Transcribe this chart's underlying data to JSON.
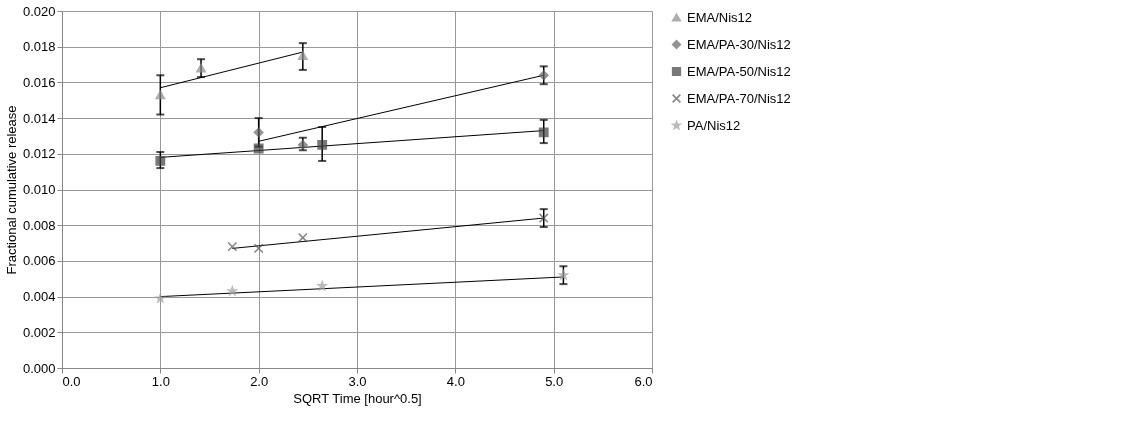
{
  "chart_data": {
    "type": "scatter",
    "xlabel": "SQRT Time [hour^0.5]",
    "ylabel": "Fractional cumulative release",
    "xlim": [
      0,
      6
    ],
    "ylim": [
      0,
      0.02
    ],
    "xticks": [
      {
        "value": 0,
        "label": "0.0"
      },
      {
        "value": 1,
        "label": "1.0"
      },
      {
        "value": 2,
        "label": "2.0"
      },
      {
        "value": 3,
        "label": "3.0"
      },
      {
        "value": 4,
        "label": "4.0"
      },
      {
        "value": 5,
        "label": "5.0"
      },
      {
        "value": 6,
        "label": "6.0"
      }
    ],
    "yticks": [
      {
        "value": 0,
        "label": "0.000"
      },
      {
        "value": 0.002,
        "label": "0.002"
      },
      {
        "value": 0.004,
        "label": "0.004"
      },
      {
        "value": 0.006,
        "label": "0.006"
      },
      {
        "value": 0.008,
        "label": "0.008"
      },
      {
        "value": 0.01,
        "label": "0.010"
      },
      {
        "value": 0.012,
        "label": "0.012"
      },
      {
        "value": 0.014,
        "label": "0.014"
      },
      {
        "value": 0.016,
        "label": "0.016"
      },
      {
        "value": 0.018,
        "label": "0.018"
      },
      {
        "value": 0.02,
        "label": "0.020"
      }
    ],
    "grid": true,
    "legend": "right",
    "series": [
      {
        "name": "EMA/Nis12",
        "color": "#8c8c8c",
        "marker": "triangle",
        "x": [
          1.0,
          1.414,
          2.449
        ],
        "values": [
          0.0153,
          0.0168,
          0.0175
        ],
        "errors": [
          [
            0.0142,
            0.0164
          ],
          [
            0.0163,
            0.0173
          ],
          [
            0.0167,
            0.0182
          ]
        ]
      },
      {
        "name": "EMA/PA-30/Nis12",
        "color": "#666666",
        "marker": "diamond",
        "x": [
          2.0,
          2.449,
          4.899
        ],
        "values": [
          0.0132,
          0.0125,
          0.0164
        ],
        "errors": [
          [
            0.0124,
            0.014
          ],
          [
            0.0122,
            0.0129
          ],
          [
            0.0159,
            0.0169
          ]
        ]
      },
      {
        "name": "EMA/PA-50/Nis12",
        "color": "#404040",
        "marker": "square",
        "x": [
          1.0,
          2.0,
          2.646,
          4.899
        ],
        "values": [
          0.0116,
          0.0123,
          0.0125,
          0.0132
        ],
        "errors": [
          [
            0.0112,
            0.0121
          ],
          null,
          [
            0.0116,
            0.0135
          ],
          [
            0.0126,
            0.0139
          ]
        ]
      },
      {
        "name": "EMA/PA-70/Nis12",
        "color": "#505050",
        "marker": "cross",
        "x": [
          1.732,
          2.0,
          2.449,
          4.899
        ],
        "values": [
          0.0068,
          0.0067,
          0.0073,
          0.0084
        ],
        "errors": [
          null,
          null,
          null,
          [
            0.0079,
            0.0089
          ]
        ]
      },
      {
        "name": "PA/Nis12",
        "color": "#a0a0a0",
        "marker": "star",
        "x": [
          1.0,
          1.732,
          2.646,
          5.099
        ],
        "values": [
          0.0039,
          0.0043,
          0.0046,
          0.0052
        ],
        "errors": [
          null,
          null,
          null,
          [
            0.0047,
            0.0057
          ]
        ]
      },
      {
        "type": "line",
        "color": "#000000",
        "x": [
          1.0,
          2.449
        ],
        "values": [
          0.0157,
          0.0177
        ]
      },
      {
        "type": "line",
        "color": "#000000",
        "x": [
          2.0,
          4.899
        ],
        "values": [
          0.0127,
          0.0164
        ]
      },
      {
        "type": "line",
        "color": "#000000",
        "x": [
          1.0,
          4.899
        ],
        "values": [
          0.0118,
          0.0133
        ]
      },
      {
        "type": "line",
        "color": "#000000",
        "x": [
          1.732,
          4.899
        ],
        "values": [
          0.0067,
          0.0084
        ]
      },
      {
        "type": "line",
        "color": "#000000",
        "x": [
          1.0,
          5.099
        ],
        "values": [
          0.004,
          0.0051
        ]
      }
    ]
  }
}
